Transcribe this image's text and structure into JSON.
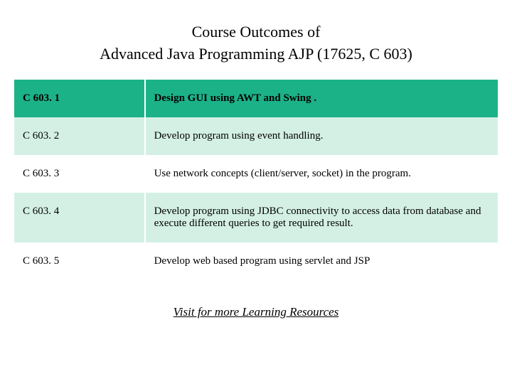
{
  "title_line1": "Course Outcomes of",
  "title_line2": "Advanced Java Programming AJP (17625, C 603)",
  "table": {
    "rows": [
      {
        "code": "C 603. 1",
        "desc": "Design GUI using AWT and Swing .",
        "style": "header"
      },
      {
        "code": "C 603. 2",
        "desc": "Develop program using event handling.",
        "style": "light"
      },
      {
        "code": "C 603. 3",
        "desc": "Use network concepts (client/server, socket) in the program.",
        "style": "white"
      },
      {
        "code": "C 603. 4",
        "desc": "Develop program using JDBC connectivity to access data from database and execute different queries to get required result.",
        "style": "light"
      },
      {
        "code": "C 603. 5",
        "desc": "Develop web based program using servlet and JSP",
        "style": "white"
      }
    ]
  },
  "link_text": "Visit for more Learning Resources",
  "colors": {
    "header_bg": "#1cb288",
    "light_bg": "#d4f0e5",
    "white_bg": "#ffffff",
    "text": "#000000"
  }
}
